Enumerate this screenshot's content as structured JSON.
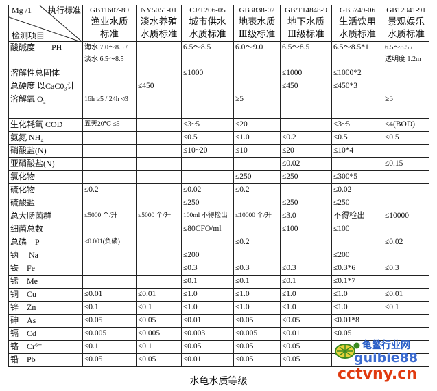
{
  "header": {
    "corner": {
      "unit": "Mg /1",
      "standard": "执行标准",
      "item": "检测项目"
    },
    "columns": [
      {
        "code": "GB11607-89",
        "name1": "渔业水质",
        "name2": "标准"
      },
      {
        "code": "NY5051-01",
        "name1": "淡水养殖",
        "name2": "水质标准"
      },
      {
        "code": "CJ/T206-05",
        "name1": "城市供水",
        "name2": "水质标准"
      },
      {
        "code": "GB3838-02",
        "name1": "地表水质",
        "name2": "Ⅲ级标准"
      },
      {
        "code": "GB/T14848-9",
        "name1": "地下水质",
        "name2": "Ⅲ级标准"
      },
      {
        "code": "GB5749-06",
        "name1": "生活饮用",
        "name2": "水质标准"
      },
      {
        "code": "GB12941-91",
        "name1": "景观娱乐",
        "name2": "水质标准"
      }
    ]
  },
  "rows": [
    {
      "item": "酸碱度　　PH",
      "cells": [
        "海水 7.0～8.5 / 淡水 6.5～8.5",
        "",
        "6.5～8.5",
        "6.0～9.0",
        "6.5～8.5",
        "6.5～8.5*1",
        "6.5～8.5 / 透明度 1.2m"
      ]
    },
    {
      "item": "溶解性总固体",
      "cells": [
        "",
        "",
        "≤1000",
        "",
        "≤1000",
        "≤1000*2",
        ""
      ]
    },
    {
      "item": "总硬度 以CaC0₃计",
      "cells": [
        "",
        "≤450",
        "",
        "",
        "≤450",
        "≤450*3",
        ""
      ]
    },
    {
      "item": "溶解氧 O₂",
      "cells": [
        "16h ≥5 / 24h ≮3",
        "",
        "",
        "≥5",
        "",
        "",
        "≥5"
      ]
    },
    {
      "item": "生化耗氧 COD",
      "cells": [
        "五天20℃ ≤5",
        "",
        "≤3~5",
        "≤20",
        "",
        "≤3~5",
        "≤4(BOD)"
      ]
    },
    {
      "item": "氨氮 NH₄",
      "cells": [
        "",
        "",
        "≤0.5",
        "≤1.0",
        "≤0.2",
        "≤0.5",
        "≤0.5"
      ]
    },
    {
      "item": "硝酸盐(N)",
      "cells": [
        "",
        "",
        "≤10~20",
        "≤10",
        "≤20",
        "≤10*4",
        ""
      ]
    },
    {
      "item": "亚硝酸盐(N)",
      "cells": [
        "",
        "",
        "",
        "",
        "≤0.02",
        "",
        "≤0.15"
      ]
    },
    {
      "item": "氯化物",
      "cells": [
        "",
        "",
        "",
        "≤250",
        "≤250",
        "≤300*5",
        ""
      ]
    },
    {
      "item": "硫化物",
      "cells": [
        "≤0.2",
        "",
        "≤0.02",
        "≤0.2",
        "",
        "≤0.02",
        ""
      ]
    },
    {
      "item": "硫酸盐",
      "cells": [
        "",
        "",
        "≤250",
        "",
        "≤250",
        "≤250",
        ""
      ]
    },
    {
      "item": "总大肠菌群",
      "cells": [
        "≤5000 个/升",
        "≤5000 个/升",
        "100ml 不得检出",
        "≤10000 个/升",
        "≤3.0",
        "不得检出",
        "≤10000"
      ]
    },
    {
      "item": "细菌总数",
      "cells": [
        "",
        "",
        "≤80CFO/ml",
        "",
        "≤100",
        "≤100",
        ""
      ]
    },
    {
      "item": "总磷　P",
      "cells": [
        "≤0.001(负磷)",
        "",
        "",
        "≤0.2",
        "",
        "",
        "≤0.02"
      ]
    },
    {
      "item": "钠　 Na",
      "cells": [
        "",
        "",
        "≤200",
        "",
        "",
        "≤200",
        ""
      ]
    },
    {
      "item": "铁　Fe",
      "cells": [
        "",
        "",
        "≤0.3",
        "≤0.3",
        "≤0.3",
        "≤0.3*6",
        "≤0.3"
      ]
    },
    {
      "item": "锰　Me",
      "cells": [
        "",
        "",
        "≤0.1",
        "≤0.1",
        "≤0.1",
        "≤0.1*7",
        ""
      ]
    },
    {
      "item": "铜　Cu",
      "cells": [
        "≤0.01",
        "≤0.01",
        "≤1.0",
        "≤1.0",
        "≤1.0",
        "≤1.0",
        "≤0.01"
      ]
    },
    {
      "item": "锌　Zn",
      "cells": [
        "≤0.1",
        "≤0.1",
        "≤1.0",
        "≤1.0",
        "≤1.0",
        "≤1.0",
        "≤0.1"
      ]
    },
    {
      "item": "砷　As",
      "cells": [
        "≤0.05",
        "≤0.05",
        "≤0.01",
        "≤0.05",
        "≤0.05",
        "≤0.01*8",
        ""
      ]
    },
    {
      "item": "镉　Cd",
      "cells": [
        "≤0.005",
        "≤0.005",
        "≤0.003",
        "≤0.005",
        "≤0.01",
        "≤0.05",
        ""
      ]
    },
    {
      "item": "铬　Cr⁶⁺",
      "cells": [
        "≤0.1",
        "≤0.1",
        "≤0.05",
        "≤0.05",
        "≤0.05",
        "",
        ""
      ]
    },
    {
      "item": "铅　Pb",
      "cells": [
        "≤0.05",
        "≤0.05",
        "≤0.01",
        "≤0.05",
        "≤0.05",
        "",
        ""
      ]
    }
  ],
  "caption": "水龟水质等级",
  "watermark": {
    "name": "龟鳖行业网",
    "site1": "guibie88",
    "site2": "cctvny.cn"
  }
}
